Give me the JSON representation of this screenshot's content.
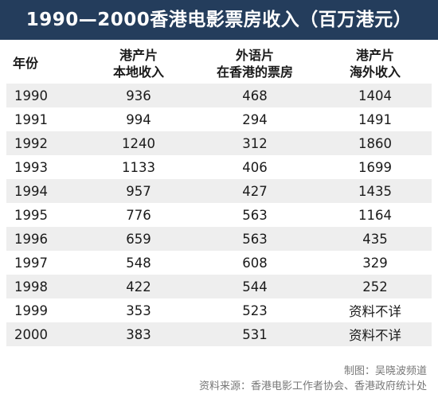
{
  "chart_data": {
    "type": "table",
    "title": "1990—2000香港电影票房收入（百万港元）",
    "columns": [
      {
        "lines": [
          "年份"
        ]
      },
      {
        "lines": [
          "港产片",
          "本地收入"
        ]
      },
      {
        "lines": [
          "外语片",
          "在香港的票房"
        ]
      },
      {
        "lines": [
          "港产片",
          "海外收入"
        ]
      }
    ],
    "rows": [
      [
        "1990",
        "936",
        "468",
        "1404"
      ],
      [
        "1991",
        "994",
        "294",
        "1491"
      ],
      [
        "1992",
        "1240",
        "312",
        "1860"
      ],
      [
        "1993",
        "1133",
        "406",
        "1699"
      ],
      [
        "1994",
        "957",
        "427",
        "1435"
      ],
      [
        "1995",
        "776",
        "563",
        "1164"
      ],
      [
        "1996",
        "659",
        "563",
        "435"
      ],
      [
        "1997",
        "548",
        "608",
        "329"
      ],
      [
        "1998",
        "422",
        "544",
        "252"
      ],
      [
        "1999",
        "353",
        "523",
        "资料不详"
      ],
      [
        "2000",
        "383",
        "531",
        "资料不详"
      ]
    ],
    "credit": "制图：吴晓波频道",
    "source": "资料来源：香港电影工作者协会、香港政府统计处"
  },
  "colors": {
    "title_background": "#243d5c",
    "title_text": "#ffffff",
    "row_shade": "#eeeeee",
    "footer_text": "#777777"
  }
}
